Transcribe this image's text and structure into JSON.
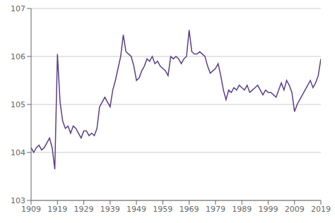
{
  "chart_data": {
    "type": "line",
    "x": [
      1909,
      1910,
      1911,
      1912,
      1913,
      1914,
      1915,
      1916,
      1917,
      1918,
      1919,
      1920,
      1921,
      1922,
      1923,
      1924,
      1925,
      1926,
      1927,
      1928,
      1929,
      1930,
      1931,
      1932,
      1933,
      1934,
      1935,
      1936,
      1937,
      1938,
      1939,
      1940,
      1941,
      1942,
      1943,
      1944,
      1945,
      1946,
      1947,
      1948,
      1949,
      1950,
      1951,
      1952,
      1953,
      1954,
      1955,
      1956,
      1957,
      1958,
      1959,
      1960,
      1961,
      1962,
      1963,
      1964,
      1965,
      1966,
      1967,
      1968,
      1969,
      1970,
      1971,
      1972,
      1973,
      1974,
      1975,
      1976,
      1977,
      1978,
      1979,
      1980,
      1981,
      1982,
      1983,
      1984,
      1985,
      1986,
      1987,
      1988,
      1989,
      1990,
      1991,
      1992,
      1993,
      1994,
      1995,
      1996,
      1997,
      1998,
      1999,
      2000,
      2001,
      2002,
      2003,
      2004,
      2005,
      2006,
      2007,
      2008,
      2009,
      2010,
      2011,
      2012,
      2013,
      2014,
      2015,
      2016,
      2017,
      2018,
      2019
    ],
    "values": [
      104.1,
      104.0,
      104.1,
      104.15,
      104.05,
      104.1,
      104.2,
      104.3,
      104.1,
      103.65,
      106.05,
      105.05,
      104.65,
      104.5,
      104.55,
      104.4,
      104.55,
      104.5,
      104.4,
      104.3,
      104.45,
      104.45,
      104.35,
      104.4,
      104.35,
      104.5,
      104.95,
      105.05,
      105.15,
      105.05,
      104.95,
      105.3,
      105.5,
      105.75,
      106.0,
      106.45,
      106.1,
      106.05,
      106.0,
      105.8,
      105.5,
      105.55,
      105.7,
      105.8,
      105.95,
      105.9,
      106.0,
      105.85,
      105.9,
      105.8,
      105.75,
      105.7,
      105.6,
      106.0,
      105.95,
      106.0,
      105.95,
      105.85,
      105.95,
      106.0,
      106.55,
      106.1,
      106.05,
      106.05,
      106.1,
      106.05,
      106.0,
      105.8,
      105.65,
      105.7,
      105.75,
      105.85,
      105.6,
      105.3,
      105.1,
      105.3,
      105.25,
      105.35,
      105.3,
      105.4,
      105.35,
      105.3,
      105.4,
      105.25,
      105.3,
      105.35,
      105.4,
      105.3,
      105.2,
      105.3,
      105.25,
      105.25,
      105.2,
      105.15,
      105.3,
      105.45,
      105.3,
      105.5,
      105.4,
      105.25,
      104.85,
      105.0,
      105.1,
      105.2,
      105.3,
      105.4,
      105.5,
      105.35,
      105.45,
      105.6,
      105.95
    ],
    "color": "#5b3f8a",
    "xlim": [
      1909,
      2019
    ],
    "ylim": [
      103,
      107
    ],
    "xticks": [
      1909,
      1919,
      1929,
      1939,
      1949,
      1959,
      1969,
      1979,
      1989,
      1999,
      2009,
      2019
    ],
    "yticks": [
      103,
      104,
      105,
      106,
      107
    ],
    "grid": "y"
  }
}
